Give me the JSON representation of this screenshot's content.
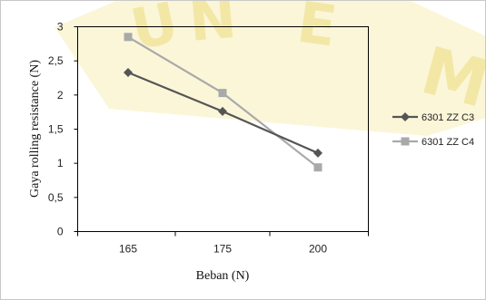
{
  "chart_data": {
    "type": "line",
    "title": "",
    "xlabel": "Beban (N)",
    "ylabel": "Gaya rolling  resistance  (N)",
    "categories": [
      "165",
      "175",
      "200"
    ],
    "ylim": [
      0,
      3
    ],
    "yticks": [
      "0",
      "0,5",
      "1",
      "1,5",
      "2",
      "2,5",
      "3"
    ],
    "grid": false,
    "legend_position": "right",
    "series": [
      {
        "name": "6301 ZZ C3",
        "values": [
          2.33,
          1.76,
          1.15
        ],
        "color": "#555555",
        "marker": "diamond"
      },
      {
        "name": "6301 ZZ C4",
        "values": [
          2.85,
          2.03,
          0.94
        ],
        "color": "#a9a9a9",
        "marker": "square"
      }
    ]
  }
}
